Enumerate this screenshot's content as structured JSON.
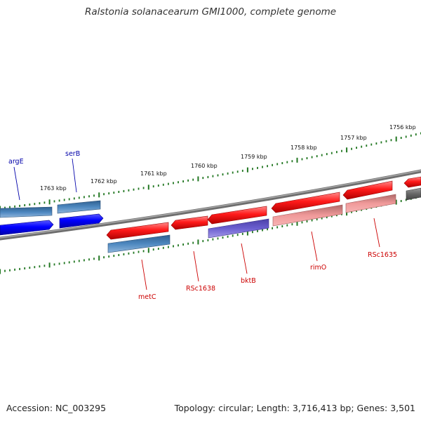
{
  "title": "Ralstonia solanacearum GMI1000, complete genome",
  "accession": "Accession: NC_003295",
  "topology": "Topology: circular; Length: 3,716,413 bp; Genes: 3,501",
  "colors": {
    "blue_label": "#0000aa",
    "red_label": "#cc0000",
    "tick": "#227722",
    "backbone": "#777777"
  },
  "kbp_ticks": [
    {
      "label": "1756 kbp"
    },
    {
      "label": "1757 kbp"
    },
    {
      "label": "1758 kbp"
    },
    {
      "label": "1759 kbp"
    },
    {
      "label": "1760 kbp"
    },
    {
      "label": "1761 kbp"
    },
    {
      "label": "1762 kbp"
    },
    {
      "label": "1763 kbp"
    }
  ],
  "gene_labels": [
    {
      "name": "argE",
      "color": "blue"
    },
    {
      "name": "serB",
      "color": "blue"
    },
    {
      "name": "metC",
      "color": "red"
    },
    {
      "name": "RSc1638",
      "color": "red"
    },
    {
      "name": "bktB",
      "color": "red"
    },
    {
      "name": "rimO",
      "color": "red"
    },
    {
      "name": "RSc1635",
      "color": "red"
    }
  ]
}
